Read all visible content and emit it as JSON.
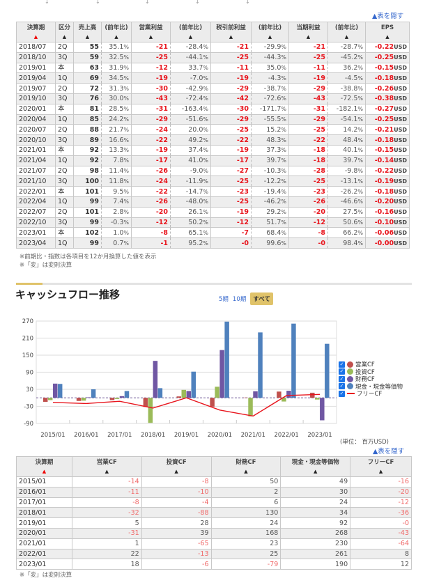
{
  "financials": {
    "hide_link": "▲表を隠す",
    "columns": [
      "決算期",
      "区分",
      "売上高",
      "(前年比)",
      "営業利益",
      "(前年比)",
      "税引前利益",
      "(前年比)",
      "当期利益",
      "(前年比)",
      "EPS"
    ],
    "rows": [
      [
        "2018/07",
        "2Q",
        "55",
        "35.1",
        "-21",
        "-28.4",
        "-21",
        "-29.9",
        "-21",
        "-28.7",
        "-0.22"
      ],
      [
        "2018/10",
        "3Q",
        "59",
        "32.5",
        "-25",
        "-44.1",
        "-25",
        "-44.3",
        "-25",
        "-45.2",
        "-0.25"
      ],
      [
        "2019/01",
        "本",
        "63",
        "31.9",
        "-12",
        "33.7",
        "-11",
        "35.0",
        "-11",
        "36.2",
        "-0.15"
      ],
      [
        "2019/04",
        "1Q",
        "69",
        "34.5",
        "-19",
        "-7.0",
        "-19",
        "-4.3",
        "-19",
        "-4.5",
        "-0.18"
      ],
      [
        "2019/07",
        "2Q",
        "72",
        "31.3",
        "-30",
        "-42.9",
        "-29",
        "-38.7",
        "-29",
        "-38.8",
        "-0.26"
      ],
      [
        "2019/10",
        "3Q",
        "76",
        "30.0",
        "-43",
        "-72.4",
        "-42",
        "-72.6",
        "-43",
        "-72.5",
        "-0.38"
      ],
      [
        "2020/01",
        "本",
        "81",
        "28.5",
        "-31",
        "-163.4",
        "-30",
        "-171.7",
        "-31",
        "-182.1",
        "-0.27"
      ],
      [
        "2020/04",
        "1Q",
        "85",
        "24.2",
        "-29",
        "-51.6",
        "-29",
        "-55.5",
        "-29",
        "-54.1",
        "-0.25"
      ],
      [
        "2020/07",
        "2Q",
        "88",
        "21.7",
        "-24",
        "20.0",
        "-25",
        "15.2",
        "-25",
        "14.2",
        "-0.21"
      ],
      [
        "2020/10",
        "3Q",
        "89",
        "16.6",
        "-22",
        "49.2",
        "-22",
        "48.3",
        "-22",
        "48.4",
        "-0.18"
      ],
      [
        "2021/01",
        "本",
        "92",
        "13.3",
        "-19",
        "37.4",
        "-19",
        "37.3",
        "-18",
        "40.1",
        "-0.15"
      ],
      [
        "2021/04",
        "1Q",
        "92",
        "7.8",
        "-17",
        "41.0",
        "-17",
        "39.7",
        "-18",
        "39.7",
        "-0.14"
      ],
      [
        "2021/07",
        "2Q",
        "98",
        "11.4",
        "-26",
        "-9.0",
        "-27",
        "-10.3",
        "-28",
        "-9.8",
        "-0.22"
      ],
      [
        "2021/10",
        "3Q",
        "100",
        "11.8",
        "-24",
        "-11.9",
        "-25",
        "-12.2",
        "-25",
        "-13.1",
        "-0.19"
      ],
      [
        "2022/01",
        "本",
        "101",
        "9.5",
        "-22",
        "-14.7",
        "-23",
        "-19.4",
        "-23",
        "-26.2",
        "-0.18"
      ],
      [
        "2022/04",
        "1Q",
        "99",
        "7.4",
        "-26",
        "-48.0",
        "-25",
        "-46.2",
        "-26",
        "-46.6",
        "-0.20"
      ],
      [
        "2022/07",
        "2Q",
        "101",
        "2.8",
        "-20",
        "26.1",
        "-19",
        "29.2",
        "-20",
        "27.5",
        "-0.16"
      ],
      [
        "2022/10",
        "3Q",
        "99",
        "-0.3",
        "-12",
        "50.2",
        "-12",
        "51.7",
        "-12",
        "50.6",
        "-0.10"
      ],
      [
        "2023/01",
        "本",
        "102",
        "1.0",
        "-8",
        "65.1",
        "-7",
        "68.4",
        "-8",
        "66.2",
        "-0.06"
      ],
      [
        "2023/04",
        "1Q",
        "99",
        "0.7",
        "-1",
        "95.2",
        "-0",
        "99.6",
        "-0",
        "98.4",
        "-0.00"
      ]
    ],
    "pct_unit": "%",
    "eps_unit": "USD",
    "note1": "※前期比・指数は各項目を12か月換算した値を表示",
    "note2": "※「変」は変則決算"
  },
  "cashflow": {
    "title": "キャッシュフロー推移",
    "period_tabs": [
      {
        "label": "5期",
        "active": false
      },
      {
        "label": "10期",
        "active": false
      },
      {
        "label": "すべて",
        "active": true
      }
    ],
    "unit": "(単位： 百万USD)",
    "hide_link": "▲表を隠す",
    "columns": [
      "決算期",
      "営業CF",
      "投資CF",
      "財務CF",
      "現金・現金等価物",
      "フリーCF"
    ],
    "note": "※「変」は変則決算"
  },
  "chart_data": {
    "type": "bar",
    "title": "キャッシュフロー推移",
    "categories": [
      "2015/01",
      "2016/01",
      "2017/01",
      "2018/01",
      "2019/01",
      "2020/01",
      "2021/01",
      "2022/01",
      "2023/01"
    ],
    "series": [
      {
        "name": "営業CF",
        "type": "bar",
        "color": "#c0504d",
        "values": [
          -14,
          -11,
          -8,
          -32,
          5,
          -31,
          1,
          22,
          18
        ]
      },
      {
        "name": "投資CF",
        "type": "bar",
        "color": "#9bbb59",
        "values": [
          -8,
          -10,
          -4,
          -88,
          28,
          39,
          -65,
          -13,
          -6
        ]
      },
      {
        "name": "財務CF",
        "type": "bar",
        "color": "#7057a3",
        "values": [
          50,
          2,
          6,
          130,
          24,
          168,
          23,
          25,
          -79
        ]
      },
      {
        "name": "現金・現金等価物",
        "type": "bar",
        "color": "#4f81bd",
        "values": [
          49,
          30,
          24,
          34,
          92,
          268,
          230,
          261,
          190
        ]
      },
      {
        "name": "フリーCF",
        "type": "line",
        "color": "#e8141c",
        "values": [
          -16,
          -20,
          -12,
          -36,
          0,
          -43,
          -64,
          8,
          12
        ]
      }
    ],
    "yticks": [
      270,
      210,
      150,
      90,
      30,
      -30,
      -90
    ],
    "ylim": [
      -90,
      270
    ],
    "xlabel": "",
    "ylabel": "",
    "legend_position": "right",
    "grid": true
  }
}
